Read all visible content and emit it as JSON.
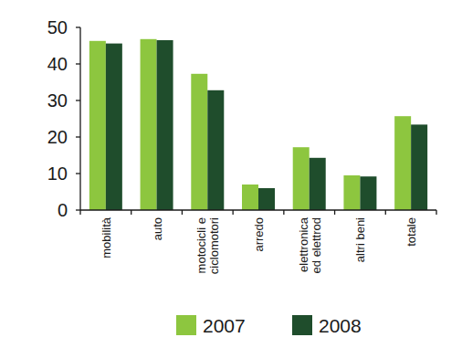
{
  "chart_data": {
    "type": "bar",
    "categories": [
      "mobilità",
      "auto",
      "motocicli e\nciclomotori",
      "arredo",
      "elettronica\ned elettrod",
      "altri beni",
      "totale"
    ],
    "series": [
      {
        "name": "2007",
        "color": "#8dc63f",
        "values": [
          46.3,
          46.8,
          37.3,
          7.0,
          17.2,
          9.5,
          25.7
        ]
      },
      {
        "name": "2008",
        "color": "#1f4d2c",
        "values": [
          45.6,
          46.5,
          32.8,
          6.0,
          14.3,
          9.2,
          23.4
        ]
      }
    ],
    "ylim": [
      0,
      50
    ],
    "yticks": [
      0,
      10,
      20,
      30,
      40,
      50
    ],
    "grid": false,
    "legend": "bottom"
  }
}
